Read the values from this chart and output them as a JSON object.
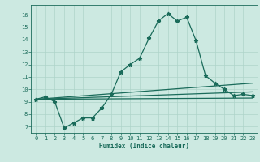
{
  "title": "",
  "xlabel": "Humidex (Indice chaleur)",
  "ylabel": "",
  "background_color": "#cce9e1",
  "line_color": "#1a6b5a",
  "grid_color": "#aed4ca",
  "xlim": [
    -0.5,
    23.5
  ],
  "ylim": [
    6.5,
    16.8
  ],
  "yticks": [
    7,
    8,
    9,
    10,
    11,
    12,
    13,
    14,
    15,
    16
  ],
  "xticks": [
    0,
    1,
    2,
    3,
    4,
    5,
    6,
    7,
    8,
    9,
    10,
    11,
    12,
    13,
    14,
    15,
    16,
    17,
    18,
    19,
    20,
    21,
    22,
    23
  ],
  "series": [
    {
      "x": [
        0,
        1,
        2,
        3,
        4,
        5,
        6,
        7,
        8,
        9,
        10,
        11,
        12,
        13,
        14,
        15,
        16,
        17,
        18,
        19,
        20,
        21,
        22,
        23
      ],
      "y": [
        9.2,
        9.4,
        9.0,
        6.9,
        7.3,
        7.7,
        7.7,
        8.5,
        9.6,
        11.4,
        12.0,
        12.5,
        14.1,
        15.5,
        16.1,
        15.5,
        15.8,
        13.9,
        11.1,
        10.5,
        10.0,
        9.5,
        9.6,
        9.5
      ],
      "marker": "*",
      "markersize": 3.5,
      "linewidth": 0.9
    },
    {
      "x": [
        0,
        23
      ],
      "y": [
        9.2,
        10.5
      ],
      "marker": null,
      "markersize": 0,
      "linewidth": 0.9
    },
    {
      "x": [
        0,
        23
      ],
      "y": [
        9.2,
        9.8
      ],
      "marker": null,
      "markersize": 0,
      "linewidth": 0.9
    },
    {
      "x": [
        0,
        23
      ],
      "y": [
        9.2,
        9.3
      ],
      "marker": null,
      "markersize": 0,
      "linewidth": 0.9
    }
  ]
}
